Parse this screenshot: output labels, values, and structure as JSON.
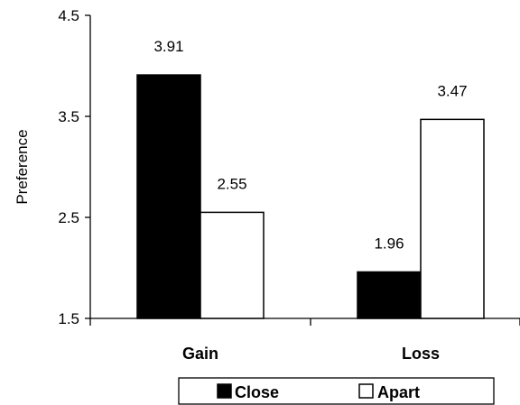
{
  "chart_data": {
    "type": "bar",
    "title": "",
    "xlabel": "",
    "ylabel": "Preference",
    "categories": [
      "Gain",
      "Loss"
    ],
    "series": [
      {
        "name": "Close",
        "values": [
          3.91,
          1.96
        ],
        "color": "#000000"
      },
      {
        "name": "Apart",
        "values": [
          2.55,
          3.47
        ],
        "color": "#ffffff"
      }
    ],
    "ylim": [
      1.5,
      4.5
    ],
    "yticks": [
      "1.5",
      "2.5",
      "3.5",
      "4.5"
    ],
    "value_labels": [
      [
        "3.91",
        "1.96"
      ],
      [
        "2.55",
        "3.47"
      ]
    ],
    "grid": false,
    "legend_position": "bottom"
  }
}
